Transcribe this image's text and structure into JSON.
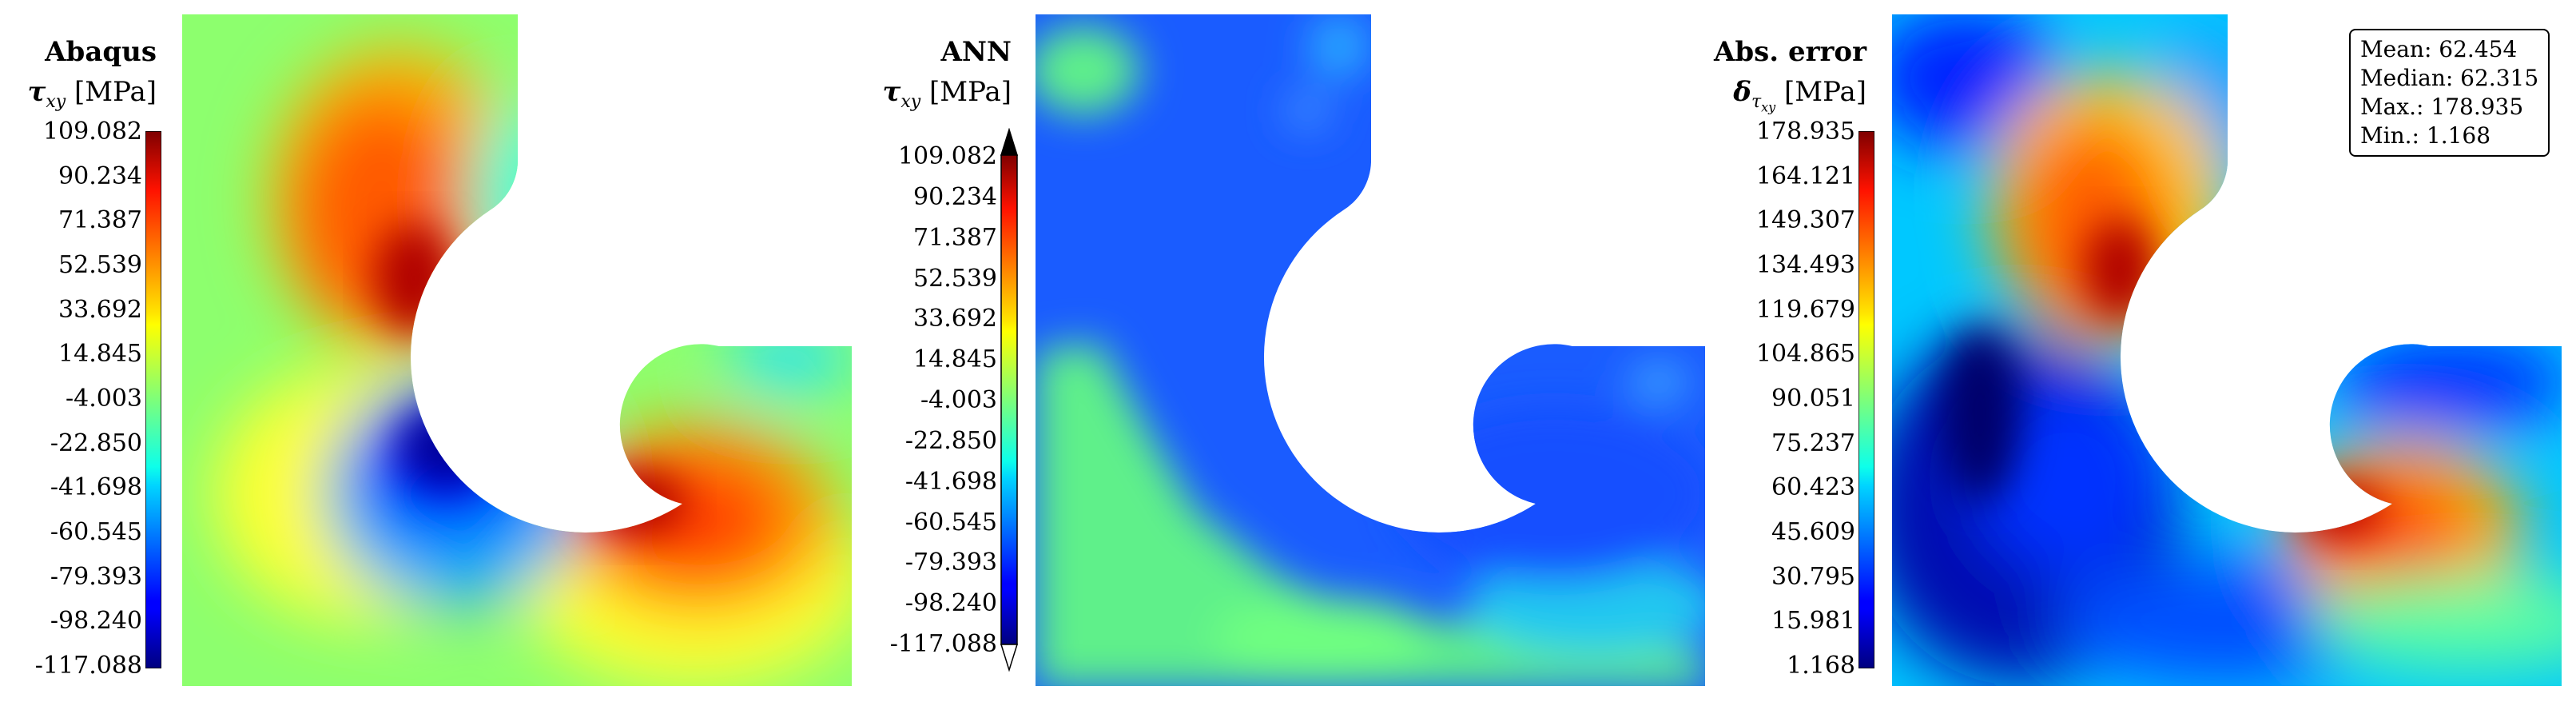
{
  "chart_data": [
    {
      "type": "heatmap",
      "panel": "Abaqus",
      "title": "Abaqus",
      "colorbar_label": "τxy [MPa]",
      "colorbar_ticks": [
        "109.082",
        "90.234",
        "71.387",
        "52.539",
        "33.692",
        "14.845",
        "-4.003",
        "-22.850",
        "-41.698",
        "-60.545",
        "-79.393",
        "-98.240",
        "-117.088"
      ],
      "vmin": -117.088,
      "vmax": 109.082,
      "colormap": "jet"
    },
    {
      "type": "heatmap",
      "panel": "ANN",
      "title": "ANN",
      "colorbar_label": "τxy [MPa]",
      "colorbar_ticks": [
        "109.082",
        "90.234",
        "71.387",
        "52.539",
        "33.692",
        "14.845",
        "-4.003",
        "-22.850",
        "-41.698",
        "-60.545",
        "-79.393",
        "-98.240",
        "-117.088"
      ],
      "vmin": -117.088,
      "vmax": 109.082,
      "colormap": "jet",
      "colorbar_extend": "both"
    },
    {
      "type": "heatmap",
      "panel": "Abs. error",
      "title": "Abs. error",
      "colorbar_label": "δτxy [MPa]",
      "colorbar_ticks": [
        "178.935",
        "164.121",
        "149.307",
        "134.493",
        "119.679",
        "104.865",
        "90.051",
        "75.237",
        "60.423",
        "45.609",
        "30.795",
        "15.981",
        "1.168"
      ],
      "vmin": 1.168,
      "vmax": 178.935,
      "colormap": "jet",
      "stats": {
        "mean": "Mean: 62.454",
        "median": "Median: 62.315",
        "max": "Max.: 178.935",
        "min": "Min.: 1.168"
      }
    }
  ],
  "labels": {
    "abaqus_title": "Abaqus",
    "ann_title": "ANN",
    "err_title": "Abs. error",
    "tau_sym": "τ",
    "tau_sub": "xy",
    "delta_sym": "δ",
    "unit": "[MPa]"
  }
}
